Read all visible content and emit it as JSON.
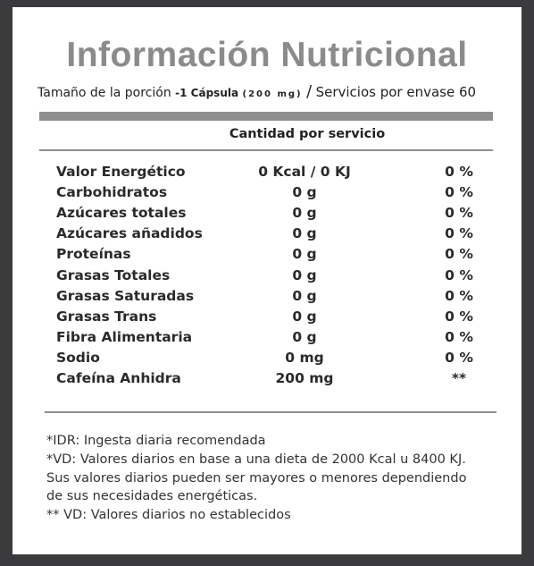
{
  "header": {
    "title": "Información Nutricional",
    "serving_label": "Tamaño de la porción",
    "serving_size": "-1 Cápsula",
    "serving_weight": "(200 mg)",
    "separator": "/",
    "servings": "Servicios por envase 60"
  },
  "table": {
    "column_header": "Cantidad por servicio",
    "rows": [
      [
        "Valor Energético",
        "0 Kcal / 0 KJ",
        "0 %"
      ],
      [
        "Carbohidratos",
        "0 g",
        "0 %"
      ],
      [
        "Azúcares totales",
        "0 g",
        "0 %"
      ],
      [
        "Azúcares añadidos",
        "0 g",
        "0 %"
      ],
      [
        "Proteínas",
        "0 g",
        "0 %"
      ],
      [
        "Grasas Totales",
        "0 g",
        "0 %"
      ],
      [
        "Grasas Saturadas",
        "0 g",
        "0 %"
      ],
      [
        "Grasas Trans",
        "0 g",
        "0 %"
      ],
      [
        "Fibra Alimentaria",
        "0 g",
        "0 %"
      ],
      [
        "Sodio",
        "0 mg",
        "0 %"
      ],
      [
        "Cafeína Anhidra",
        "200 mg",
        "**"
      ]
    ]
  },
  "footnotes": [
    "*IDR: Ingesta diaria recomendada",
    "*VD: Valores diarios en base a una dieta de 2000 Kcal u 8400 KJ.",
    "Sus valores diarios pueden ser mayores o menores dependiendo",
    "de sus necesidades energéticas.",
    "** VD: Valores diarios no establecidos"
  ]
}
